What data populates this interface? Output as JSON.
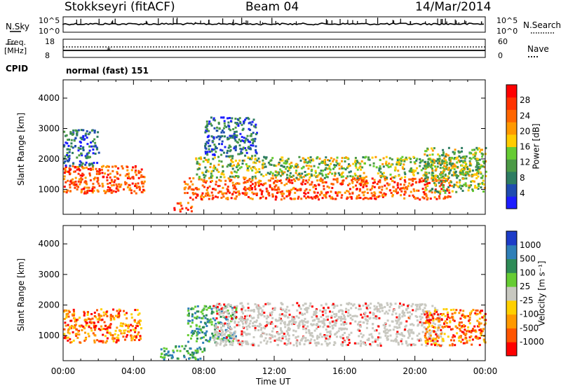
{
  "header": {
    "station": "Stokkseyri (fitACF)",
    "beam": "Beam 04",
    "date": "14/Mar/2014"
  },
  "noise_panel": {
    "left_label": "N.Sky",
    "right_label": "N.Search",
    "ticks_left": [
      "10^5",
      "10^0"
    ],
    "ticks_right": [
      "10^5",
      "10^0"
    ]
  },
  "freq_panel": {
    "left_label_1": "Freq.",
    "left_label_2": "[MHz]",
    "right_label": "Nave",
    "ticks_left": [
      "18",
      "8"
    ],
    "ticks_right": [
      "60",
      "0"
    ]
  },
  "cpid": {
    "label": "CPID",
    "value": "normal (fast) 151"
  },
  "chart_data": [
    {
      "type": "heatmap",
      "name": "power",
      "ylabel": "Slant Range [km]",
      "xlabel": "",
      "xlim": [
        0,
        24
      ],
      "ylim": [
        180,
        4600
      ],
      "yticks": [
        "1000",
        "2000",
        "3000",
        "4000"
      ],
      "colorbar": {
        "label": "Power [dB]",
        "ticks": [
          "4",
          "8",
          "12",
          "16",
          "20",
          "24",
          "28"
        ],
        "colors": [
          "#1d1dff",
          "#1f4cb0",
          "#2e7d62",
          "#4c9a46",
          "#66cc33",
          "#ffcc00",
          "#ff9900",
          "#ff6600",
          "#ff3300",
          "#ff0000"
        ]
      },
      "regions": [
        {
          "t0": 0.0,
          "t1": 4.6,
          "r0": 900,
          "r1": 1800,
          "level": "high"
        },
        {
          "t0": 0.0,
          "t1": 2.0,
          "r0": 1800,
          "r1": 3000,
          "level": "low"
        },
        {
          "t0": 6.2,
          "t1": 7.3,
          "r0": 300,
          "r1": 600,
          "level": "high"
        },
        {
          "t0": 6.8,
          "t1": 22.0,
          "r0": 700,
          "r1": 1400,
          "level": "high"
        },
        {
          "t0": 7.5,
          "t1": 23.8,
          "r0": 1400,
          "r1": 2100,
          "level": "mid"
        },
        {
          "t0": 8.0,
          "t1": 11.0,
          "r0": 2100,
          "r1": 3400,
          "level": "low"
        },
        {
          "t0": 20.5,
          "t1": 24.0,
          "r0": 900,
          "r1": 2400,
          "level": "mid"
        }
      ]
    },
    {
      "type": "heatmap",
      "name": "velocity",
      "ylabel": "Slant Range [km]",
      "xlabel": "Time UT",
      "xlim": [
        0,
        24
      ],
      "ylim": [
        180,
        4600
      ],
      "xticks": [
        "00:00",
        "04:00",
        "08:00",
        "12:00",
        "16:00",
        "20:00",
        "00:00"
      ],
      "yticks": [
        "1000",
        "2000",
        "3000",
        "4000"
      ],
      "colorbar": {
        "label": "Velocity [m s⁻¹]",
        "ticks": [
          "1000",
          "500",
          "100",
          "25",
          "-25",
          "-100",
          "-500",
          "-1000"
        ],
        "colors": [
          "#1d3cc8",
          "#2f7fb8",
          "#2e8b57",
          "#66cc33",
          "#c8c8c0",
          "#ffd000",
          "#ff9900",
          "#ff5500",
          "#ff0000"
        ]
      },
      "regions": [
        {
          "t0": 0.0,
          "t1": 4.4,
          "r0": 800,
          "r1": 1900,
          "level": "negative"
        },
        {
          "t0": 5.5,
          "t1": 8.0,
          "r0": 250,
          "r1": 700,
          "level": "positive"
        },
        {
          "t0": 7.0,
          "t1": 9.8,
          "r0": 800,
          "r1": 2000,
          "level": "positive"
        },
        {
          "t0": 8.5,
          "t1": 21.5,
          "r0": 700,
          "r1": 2100,
          "level": "near-zero"
        },
        {
          "t0": 20.5,
          "t1": 24.0,
          "r0": 700,
          "r1": 1900,
          "level": "negative"
        }
      ]
    }
  ]
}
